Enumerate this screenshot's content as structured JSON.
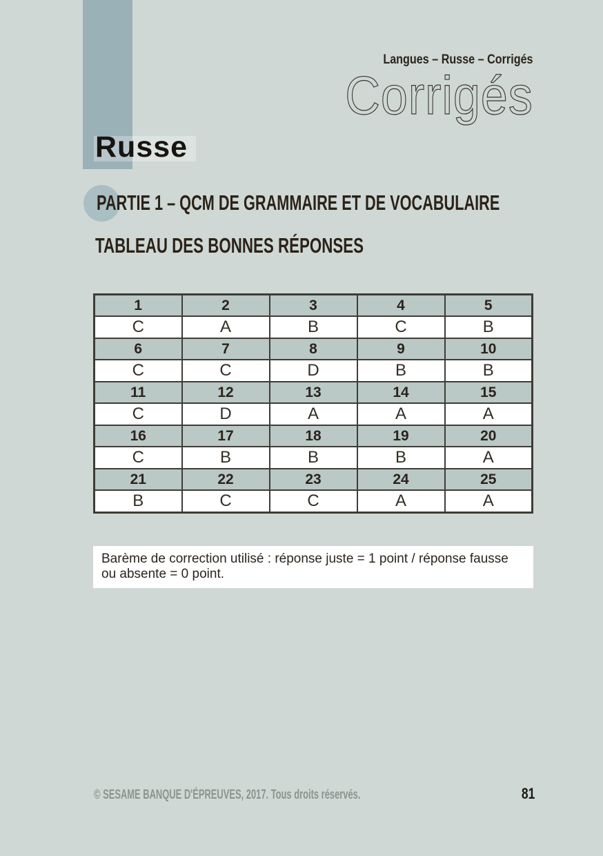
{
  "page": {
    "background_color": "#cfd8d4",
    "accent_bar_color": "#9ab1b8",
    "circle_color": "#a9bfc3",
    "table_header_color": "#bac8c6",
    "table_border_color": "#3e3c36",
    "footer_text_color": "#8b948d"
  },
  "header": {
    "breadcrumb": "Langues – Russe – Corrigés",
    "title": "Corrigés",
    "section_title": "Russe"
  },
  "part1": {
    "heading": "PARTIE 1 – QCM DE GRAMMAIRE ET DE VOCABULAIRE",
    "subheading": "TABLEAU DES BONNES RÉPONSES"
  },
  "answers_table": {
    "rows": [
      {
        "type": "header",
        "cells": [
          "1",
          "2",
          "3",
          "4",
          "5"
        ]
      },
      {
        "type": "answer",
        "cells": [
          "C",
          "A",
          "B",
          "C",
          "B"
        ]
      },
      {
        "type": "header",
        "cells": [
          "6",
          "7",
          "8",
          "9",
          "10"
        ]
      },
      {
        "type": "answer",
        "cells": [
          "C",
          "C",
          "D",
          "B",
          "B"
        ]
      },
      {
        "type": "header",
        "cells": [
          "11",
          "12",
          "13",
          "14",
          "15"
        ]
      },
      {
        "type": "answer",
        "cells": [
          "C",
          "D",
          "A",
          "A",
          "A"
        ]
      },
      {
        "type": "header",
        "cells": [
          "16",
          "17",
          "18",
          "19",
          "20"
        ]
      },
      {
        "type": "answer",
        "cells": [
          "C",
          "B",
          "B",
          "B",
          "A"
        ]
      },
      {
        "type": "header",
        "cells": [
          "21",
          "22",
          "23",
          "24",
          "25"
        ]
      },
      {
        "type": "answer",
        "cells": [
          "B",
          "C",
          "C",
          "A",
          "A"
        ]
      }
    ]
  },
  "note": {
    "text": "Barème de correction utilisé : réponse juste = 1 point / réponse fausse ou absente = 0 point."
  },
  "footer": {
    "copyright": "© SESAME BANQUE D'ÉPREUVES, 2017. Tous droits réservés.",
    "page_number": "81"
  }
}
